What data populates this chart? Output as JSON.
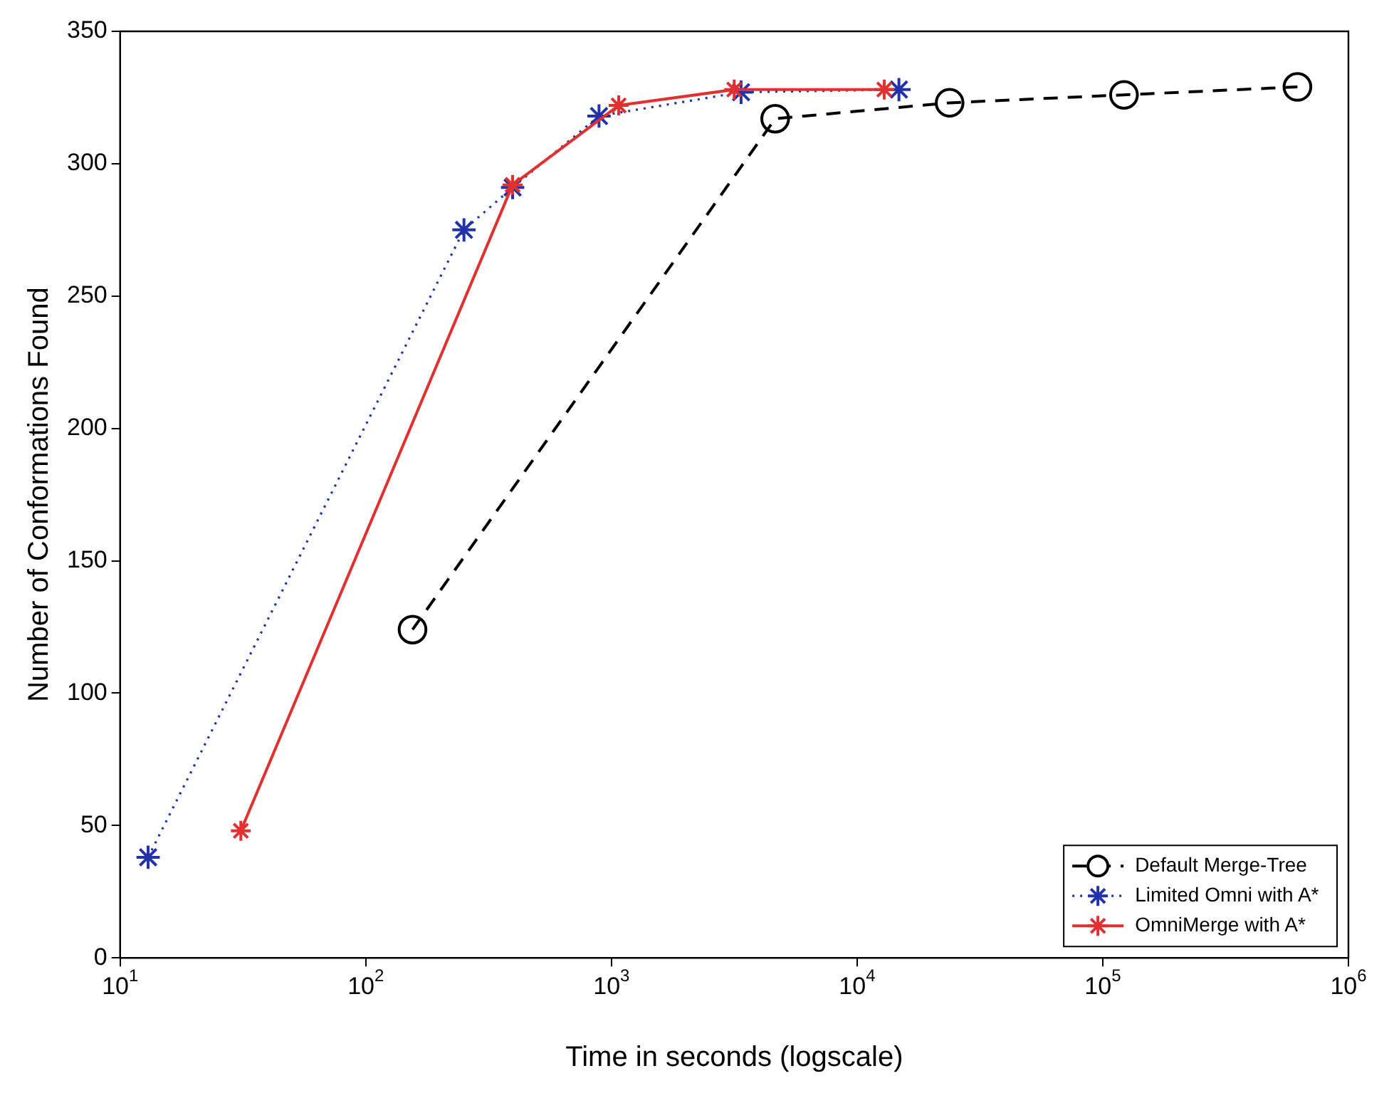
{
  "chart_data": {
    "type": "line",
    "xlabel": "Time in seconds (logscale)",
    "ylabel": "Number of Conformations Found",
    "log": "x",
    "grid": false,
    "legend": "bottom right",
    "xlim": [
      10,
      1000000
    ],
    "xticks": [
      {
        "value": 10,
        "label": "10$^{1}$"
      },
      {
        "value": 100,
        "label": "10$^{2}$"
      },
      {
        "value": 1000,
        "label": "10$^{3}$"
      },
      {
        "value": 10000,
        "label": "10$^{4}$"
      },
      {
        "value": 100000,
        "label": "10$^{5}$"
      },
      {
        "value": 1000000,
        "label": "10$^{6}$"
      }
    ],
    "ylim": [
      0,
      350
    ],
    "yticks": [
      0,
      50,
      100,
      150,
      200,
      250,
      300,
      350
    ],
    "series": [
      {
        "name": "Default Merge-Tree",
        "color": "#000000",
        "marker": "circle",
        "line_style": "dashed",
        "x": [
          155,
          4640,
          23800,
          122000,
          620000
        ],
        "values": [
          124,
          317,
          323,
          326,
          329
        ]
      },
      {
        "name": "Limited Omni with A*",
        "color": "#2233aa",
        "marker": "cross",
        "line_style": "dotted",
        "x": [
          13,
          251,
          396,
          890,
          3370,
          14800
        ],
        "values": [
          38,
          275,
          291,
          318,
          327,
          328
        ]
      },
      {
        "name": "OmniMerge with A*",
        "color": "#e03030",
        "marker": "cross",
        "line_style": "solid",
        "x": [
          31,
          396,
          1070,
          3160,
          12900
        ],
        "values": [
          48,
          292,
          322,
          328,
          328
        ]
      }
    ]
  }
}
